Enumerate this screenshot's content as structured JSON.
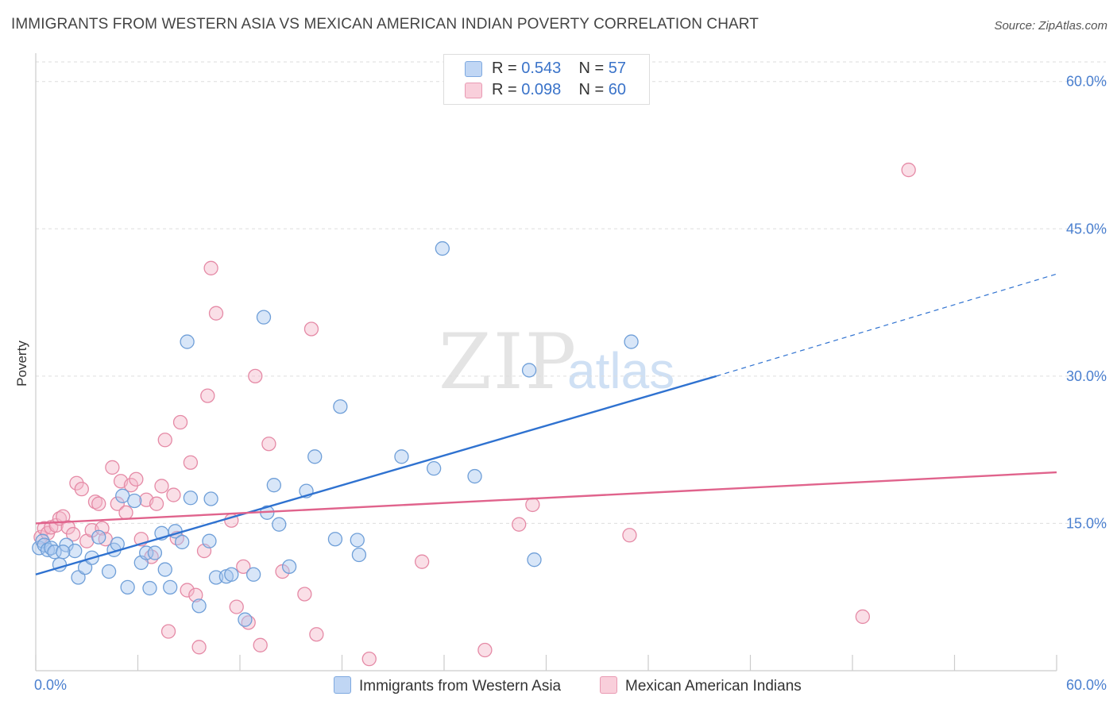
{
  "header": {
    "title": "IMMIGRANTS FROM WESTERN ASIA VS MEXICAN AMERICAN INDIAN POVERTY CORRELATION CHART",
    "source": "Source: ZipAtlas.com"
  },
  "watermark": {
    "zip": "ZIP",
    "atlas": "atlas"
  },
  "legend_top": {
    "rows": [
      {
        "r_label": "R =",
        "r_value": "0.543",
        "n_label": "N =",
        "n_value": "57"
      },
      {
        "r_label": "R =",
        "r_value": "0.098",
        "n_label": "N =",
        "n_value": "60"
      }
    ]
  },
  "colors": {
    "blue_fill": "#a9c8ef",
    "blue_stroke": "#6f9fd8",
    "blue_line": "#2f72d0",
    "pink_fill": "#f5b8c9",
    "pink_stroke": "#e58aa6",
    "pink_line": "#e0638c",
    "tick_label": "#4a7fcf",
    "grid": "#dddddd"
  },
  "chart_data": {
    "type": "scatter",
    "title": "IMMIGRANTS FROM WESTERN ASIA VS MEXICAN AMERICAN INDIAN POVERTY CORRELATION CHART",
    "xlabel": "",
    "ylabel": "Poverty",
    "xlim": [
      0,
      60
    ],
    "ylim": [
      0,
      62
    ],
    "x_tick_labels": [
      "0.0%",
      "60.0%"
    ],
    "y_ticks": [
      15,
      30,
      45,
      60
    ],
    "y_tick_labels": [
      "15.0%",
      "30.0%",
      "45.0%",
      "60.0%"
    ],
    "grid": true,
    "legend_position": "top-center",
    "series": [
      {
        "name": "Immigrants from Western Asia",
        "color": "#a9c8ef",
        "points": [
          [
            0.2,
            12.5
          ],
          [
            0.4,
            13.2
          ],
          [
            0.5,
            12.8
          ],
          [
            0.7,
            12.3
          ],
          [
            0.9,
            12.5
          ],
          [
            1.1,
            12.1
          ],
          [
            1.4,
            10.8
          ],
          [
            1.8,
            12.8
          ],
          [
            2.3,
            12.2
          ],
          [
            2.5,
            9.5
          ],
          [
            2.9,
            10.5
          ],
          [
            3.3,
            11.5
          ],
          [
            3.7,
            13.6
          ],
          [
            4.3,
            10.1
          ],
          [
            4.6,
            12.3
          ],
          [
            4.8,
            12.9
          ],
          [
            5.1,
            17.8
          ],
          [
            5.4,
            8.5
          ],
          [
            5.8,
            17.3
          ],
          [
            6.2,
            11.0
          ],
          [
            6.5,
            12.0
          ],
          [
            6.7,
            8.4
          ],
          [
            7.0,
            12.0
          ],
          [
            7.4,
            14.0
          ],
          [
            7.6,
            10.3
          ],
          [
            7.9,
            8.5
          ],
          [
            8.2,
            14.2
          ],
          [
            8.6,
            13.1
          ],
          [
            8.9,
            33.5
          ],
          [
            9.1,
            17.6
          ],
          [
            9.6,
            6.6
          ],
          [
            10.3,
            17.5
          ],
          [
            10.2,
            13.2
          ],
          [
            10.6,
            9.5
          ],
          [
            11.2,
            9.6
          ],
          [
            11.5,
            9.8
          ],
          [
            12.3,
            5.2
          ],
          [
            12.8,
            9.8
          ],
          [
            13.4,
            36.0
          ],
          [
            13.6,
            16.1
          ],
          [
            14.0,
            18.9
          ],
          [
            14.3,
            14.9
          ],
          [
            14.9,
            10.6
          ],
          [
            15.9,
            18.3
          ],
          [
            16.4,
            21.8
          ],
          [
            17.6,
            13.4
          ],
          [
            17.9,
            26.9
          ],
          [
            18.9,
            13.3
          ],
          [
            19.0,
            11.8
          ],
          [
            21.5,
            21.8
          ],
          [
            23.4,
            20.6
          ],
          [
            23.9,
            43.0
          ],
          [
            25.8,
            19.8
          ],
          [
            29.0,
            30.6
          ],
          [
            29.3,
            11.3
          ],
          [
            35.0,
            33.5
          ],
          [
            1.6,
            12.1
          ]
        ]
      },
      {
        "name": "Mexican American Indians",
        "color": "#f5b8c9",
        "points": [
          [
            0.3,
            13.6
          ],
          [
            0.5,
            14.5
          ],
          [
            0.7,
            14.0
          ],
          [
            0.9,
            14.6
          ],
          [
            1.2,
            14.8
          ],
          [
            1.4,
            15.5
          ],
          [
            1.6,
            15.7
          ],
          [
            1.9,
            14.6
          ],
          [
            2.2,
            13.9
          ],
          [
            2.4,
            19.1
          ],
          [
            2.7,
            18.5
          ],
          [
            3.0,
            13.2
          ],
          [
            3.3,
            14.3
          ],
          [
            3.5,
            17.2
          ],
          [
            3.7,
            17.0
          ],
          [
            3.9,
            14.5
          ],
          [
            4.1,
            13.4
          ],
          [
            4.5,
            20.7
          ],
          [
            4.8,
            17.0
          ],
          [
            5.0,
            19.3
          ],
          [
            5.3,
            16.1
          ],
          [
            5.6,
            18.9
          ],
          [
            5.9,
            19.5
          ],
          [
            6.2,
            13.4
          ],
          [
            6.5,
            17.4
          ],
          [
            6.8,
            11.6
          ],
          [
            7.1,
            17.0
          ],
          [
            7.4,
            18.8
          ],
          [
            7.6,
            23.5
          ],
          [
            7.8,
            4.0
          ],
          [
            8.1,
            17.9
          ],
          [
            8.3,
            13.5
          ],
          [
            8.5,
            25.3
          ],
          [
            8.9,
            8.2
          ],
          [
            9.1,
            21.2
          ],
          [
            9.4,
            7.7
          ],
          [
            9.6,
            2.4
          ],
          [
            9.9,
            12.2
          ],
          [
            10.1,
            28.0
          ],
          [
            10.3,
            41.0
          ],
          [
            10.6,
            36.4
          ],
          [
            11.5,
            15.3
          ],
          [
            11.8,
            6.5
          ],
          [
            12.2,
            10.6
          ],
          [
            12.5,
            4.9
          ],
          [
            12.9,
            30.0
          ],
          [
            13.2,
            2.6
          ],
          [
            13.7,
            23.1
          ],
          [
            14.5,
            10.1
          ],
          [
            15.8,
            7.8
          ],
          [
            16.2,
            34.8
          ],
          [
            16.5,
            3.7
          ],
          [
            19.6,
            1.2
          ],
          [
            22.7,
            11.1
          ],
          [
            26.4,
            2.1
          ],
          [
            28.4,
            14.9
          ],
          [
            29.2,
            16.9
          ],
          [
            34.9,
            13.8
          ],
          [
            48.6,
            5.5
          ],
          [
            51.3,
            51.0
          ]
        ]
      }
    ],
    "trendlines": [
      {
        "series": "Immigrants from Western Asia",
        "x": [
          0,
          40.0
        ],
        "y": [
          9.8,
          30.0
        ],
        "dashed_extension_to": [
          60,
          40.4
        ]
      },
      {
        "series": "Mexican American Indians",
        "x": [
          0,
          60
        ],
        "y": [
          15.0,
          20.2
        ]
      }
    ]
  }
}
